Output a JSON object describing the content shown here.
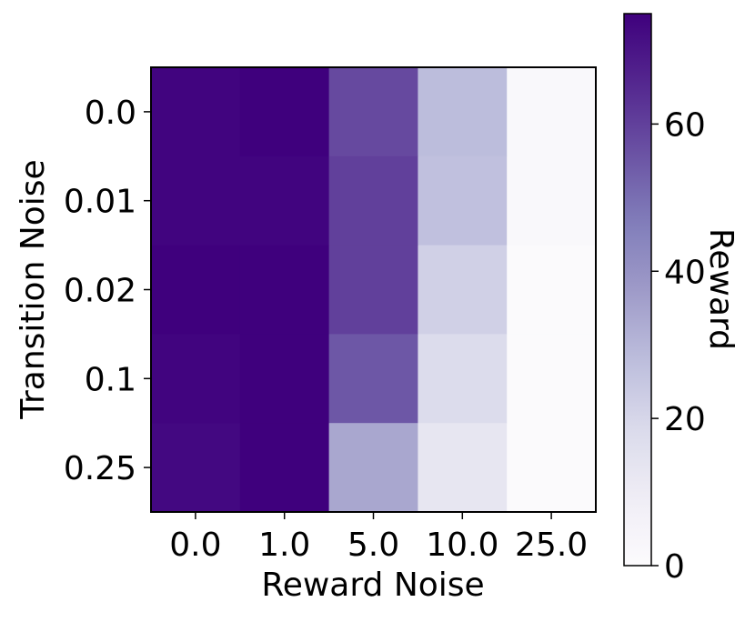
{
  "chart_data": {
    "type": "heatmap",
    "title": "",
    "xlabel": "Reward Noise",
    "ylabel": "Transition Noise",
    "x_categories": [
      "0.0",
      "1.0",
      "5.0",
      "10.0",
      "25.0"
    ],
    "y_categories": [
      "0.0",
      "0.01",
      "0.02",
      "0.1",
      "0.25"
    ],
    "values": [
      [
        74,
        75,
        58,
        28,
        2
      ],
      [
        74,
        74,
        60,
        27,
        2
      ],
      [
        75,
        75,
        60,
        22,
        1
      ],
      [
        74,
        75,
        55,
        18,
        1
      ],
      [
        73,
        75,
        34,
        13,
        1
      ]
    ],
    "colorbar": {
      "label": "Reward",
      "min": 0,
      "max": 75,
      "ticks": [
        0,
        20,
        40,
        60
      ],
      "tick_labels": [
        "0",
        "20",
        "40",
        "60"
      ],
      "colormap": "Purples",
      "color_low": "#fcfbfd",
      "color_high": "#3f007d"
    },
    "grid": false
  }
}
